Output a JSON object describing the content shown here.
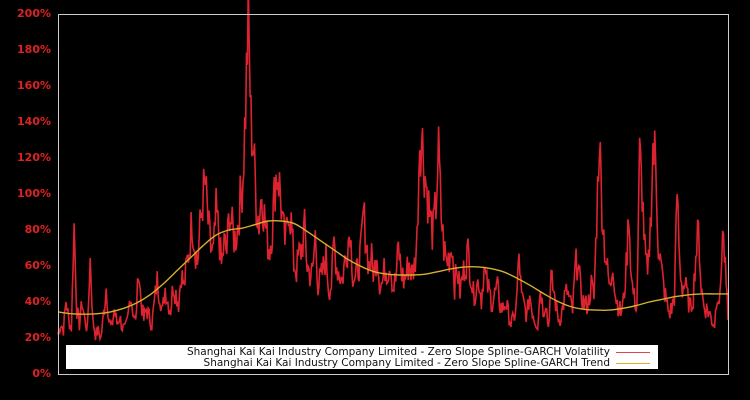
{
  "chart_data": {
    "type": "line",
    "title": "",
    "xlabel": "",
    "ylabel": "",
    "ylim": [
      0,
      200
    ],
    "y_ticks": [
      "0%",
      "20%",
      "40%",
      "60%",
      "80%",
      "100%",
      "120%",
      "140%",
      "160%",
      "180%",
      "200%"
    ],
    "x_ticks": [],
    "grid": false,
    "background": "#000000",
    "axis_color": "#cccccc",
    "tick_label_color": "#dd2222",
    "legend_position": "lower center (inside plot)",
    "series": [
      {
        "name": "Shanghai Kai Kai Industry Company Limited - Zero Slope Spline-GARCH Volatility",
        "color": "#dd2230",
        "values": [
          22,
          28,
          25,
          41,
          30,
          26,
          83,
          35,
          28,
          40,
          30,
          25,
          64,
          30,
          22,
          24,
          20,
          33,
          48,
          30,
          25,
          36,
          28,
          32,
          26,
          24,
          30,
          45,
          35,
          28,
          59,
          40,
          30,
          36,
          32,
          28,
          40,
          52,
          44,
          34,
          48,
          40,
          36,
          50,
          45,
          40,
          56,
          48,
          60,
          70,
          86,
          72,
          62,
          80,
          98,
          105,
          84,
          70,
          66,
          90,
          78,
          60,
          72,
          68,
          92,
          80,
          75,
          82,
          95,
          110,
          150,
          198,
          140,
          125,
          95,
          85,
          102,
          88,
          75,
          70,
          82,
          108,
          112,
          100,
          80,
          72,
          95,
          85,
          62,
          58,
          66,
          70,
          82,
          60,
          56,
          55,
          78,
          50,
          52,
          58,
          66,
          48,
          50,
          74,
          60,
          56,
          52,
          62,
          72,
          80,
          56,
          52,
          60,
          66,
          90,
          74,
          60,
          64,
          55,
          68,
          52,
          50,
          60,
          58,
          62,
          48,
          52,
          70,
          58,
          52,
          56,
          62,
          55,
          60,
          75,
          134,
          128,
          110,
          98,
          85,
          78,
          95,
          125,
          88,
          70,
          62,
          66,
          72,
          50,
          58,
          46,
          54,
          62,
          68,
          56,
          44,
          48,
          52,
          42,
          58,
          50,
          45,
          40,
          44,
          48,
          38,
          36,
          40,
          34,
          28,
          30,
          38,
          66,
          42,
          38,
          32,
          44,
          35,
          30,
          28,
          48,
          36,
          40,
          26,
          52,
          46,
          36,
          30,
          34,
          42,
          46,
          40,
          35,
          58,
          64,
          46,
          40,
          38,
          40,
          50,
          42,
          88,
          132,
          92,
          70,
          58,
          46,
          62,
          44,
          38,
          34,
          40,
          58,
          90,
          52,
          42,
          38,
          122,
          100,
          70,
          52,
          80,
          125,
          118,
          72,
          60,
          48,
          40,
          34,
          36,
          44,
          102,
          60,
          48,
          50,
          42,
          36,
          44,
          66,
          80,
          48,
          38,
          36,
          34,
          30,
          28,
          46,
          40,
          80,
          60,
          30
        ]
      },
      {
        "name": "Shanghai Kai Kai Industry Company Limited - Zero Slope Spline-GARCH Trend",
        "color": "#d4b02c",
        "values": [
          34.5,
          33.5,
          33.2,
          33.5,
          34.5,
          36.5,
          39.5,
          44,
          50,
          57,
          64,
          71,
          77,
          80,
          81,
          83,
          85,
          85,
          83.5,
          79,
          74,
          69,
          64,
          60,
          57,
          55.5,
          55,
          55,
          55.5,
          57,
          58.5,
          59.5,
          59.5,
          58.5,
          56.5,
          53,
          49,
          44.5,
          40.5,
          37.5,
          36,
          35.5,
          35.5,
          36.5,
          38,
          40,
          41.5,
          43,
          44,
          44.5,
          44.5,
          44.5
        ]
      }
    ]
  },
  "legend": {
    "volatility_label": "Shanghai Kai Kai Industry Company Limited - Zero Slope Spline-GARCH Volatility",
    "trend_label": "Shanghai Kai Kai Industry Company Limited - Zero Slope Spline-GARCH Trend"
  },
  "colors": {
    "volatility": "#dd2230",
    "trend": "#d4b02c",
    "axis": "#cccccc",
    "tick_label": "#dd2222"
  }
}
